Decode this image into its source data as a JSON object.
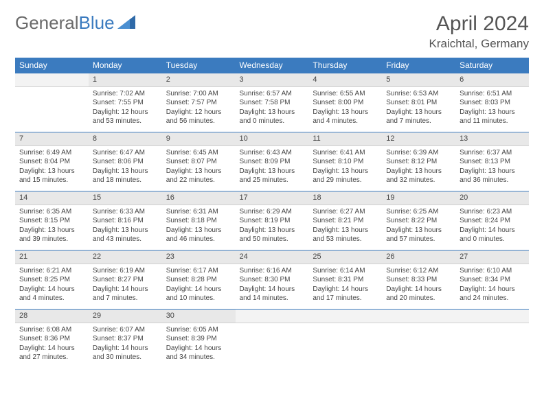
{
  "brand": {
    "part1": "General",
    "part2": "Blue"
  },
  "title": "April 2024",
  "location": "Kraichtal, Germany",
  "colors": {
    "header_bg": "#3b7bbf",
    "header_text": "#ffffff",
    "daybar_bg": "#e8e8e8",
    "daybar_border_top": "#3b7bbf",
    "text": "#444444"
  },
  "weekdays": [
    "Sunday",
    "Monday",
    "Tuesday",
    "Wednesday",
    "Thursday",
    "Friday",
    "Saturday"
  ],
  "weeks": [
    [
      {
        "n": "",
        "lines": []
      },
      {
        "n": "1",
        "lines": [
          "Sunrise: 7:02 AM",
          "Sunset: 7:55 PM",
          "Daylight: 12 hours",
          "and 53 minutes."
        ]
      },
      {
        "n": "2",
        "lines": [
          "Sunrise: 7:00 AM",
          "Sunset: 7:57 PM",
          "Daylight: 12 hours",
          "and 56 minutes."
        ]
      },
      {
        "n": "3",
        "lines": [
          "Sunrise: 6:57 AM",
          "Sunset: 7:58 PM",
          "Daylight: 13 hours",
          "and 0 minutes."
        ]
      },
      {
        "n": "4",
        "lines": [
          "Sunrise: 6:55 AM",
          "Sunset: 8:00 PM",
          "Daylight: 13 hours",
          "and 4 minutes."
        ]
      },
      {
        "n": "5",
        "lines": [
          "Sunrise: 6:53 AM",
          "Sunset: 8:01 PM",
          "Daylight: 13 hours",
          "and 7 minutes."
        ]
      },
      {
        "n": "6",
        "lines": [
          "Sunrise: 6:51 AM",
          "Sunset: 8:03 PM",
          "Daylight: 13 hours",
          "and 11 minutes."
        ]
      }
    ],
    [
      {
        "n": "7",
        "lines": [
          "Sunrise: 6:49 AM",
          "Sunset: 8:04 PM",
          "Daylight: 13 hours",
          "and 15 minutes."
        ]
      },
      {
        "n": "8",
        "lines": [
          "Sunrise: 6:47 AM",
          "Sunset: 8:06 PM",
          "Daylight: 13 hours",
          "and 18 minutes."
        ]
      },
      {
        "n": "9",
        "lines": [
          "Sunrise: 6:45 AM",
          "Sunset: 8:07 PM",
          "Daylight: 13 hours",
          "and 22 minutes."
        ]
      },
      {
        "n": "10",
        "lines": [
          "Sunrise: 6:43 AM",
          "Sunset: 8:09 PM",
          "Daylight: 13 hours",
          "and 25 minutes."
        ]
      },
      {
        "n": "11",
        "lines": [
          "Sunrise: 6:41 AM",
          "Sunset: 8:10 PM",
          "Daylight: 13 hours",
          "and 29 minutes."
        ]
      },
      {
        "n": "12",
        "lines": [
          "Sunrise: 6:39 AM",
          "Sunset: 8:12 PM",
          "Daylight: 13 hours",
          "and 32 minutes."
        ]
      },
      {
        "n": "13",
        "lines": [
          "Sunrise: 6:37 AM",
          "Sunset: 8:13 PM",
          "Daylight: 13 hours",
          "and 36 minutes."
        ]
      }
    ],
    [
      {
        "n": "14",
        "lines": [
          "Sunrise: 6:35 AM",
          "Sunset: 8:15 PM",
          "Daylight: 13 hours",
          "and 39 minutes."
        ]
      },
      {
        "n": "15",
        "lines": [
          "Sunrise: 6:33 AM",
          "Sunset: 8:16 PM",
          "Daylight: 13 hours",
          "and 43 minutes."
        ]
      },
      {
        "n": "16",
        "lines": [
          "Sunrise: 6:31 AM",
          "Sunset: 8:18 PM",
          "Daylight: 13 hours",
          "and 46 minutes."
        ]
      },
      {
        "n": "17",
        "lines": [
          "Sunrise: 6:29 AM",
          "Sunset: 8:19 PM",
          "Daylight: 13 hours",
          "and 50 minutes."
        ]
      },
      {
        "n": "18",
        "lines": [
          "Sunrise: 6:27 AM",
          "Sunset: 8:21 PM",
          "Daylight: 13 hours",
          "and 53 minutes."
        ]
      },
      {
        "n": "19",
        "lines": [
          "Sunrise: 6:25 AM",
          "Sunset: 8:22 PM",
          "Daylight: 13 hours",
          "and 57 minutes."
        ]
      },
      {
        "n": "20",
        "lines": [
          "Sunrise: 6:23 AM",
          "Sunset: 8:24 PM",
          "Daylight: 14 hours",
          "and 0 minutes."
        ]
      }
    ],
    [
      {
        "n": "21",
        "lines": [
          "Sunrise: 6:21 AM",
          "Sunset: 8:25 PM",
          "Daylight: 14 hours",
          "and 4 minutes."
        ]
      },
      {
        "n": "22",
        "lines": [
          "Sunrise: 6:19 AM",
          "Sunset: 8:27 PM",
          "Daylight: 14 hours",
          "and 7 minutes."
        ]
      },
      {
        "n": "23",
        "lines": [
          "Sunrise: 6:17 AM",
          "Sunset: 8:28 PM",
          "Daylight: 14 hours",
          "and 10 minutes."
        ]
      },
      {
        "n": "24",
        "lines": [
          "Sunrise: 6:16 AM",
          "Sunset: 8:30 PM",
          "Daylight: 14 hours",
          "and 14 minutes."
        ]
      },
      {
        "n": "25",
        "lines": [
          "Sunrise: 6:14 AM",
          "Sunset: 8:31 PM",
          "Daylight: 14 hours",
          "and 17 minutes."
        ]
      },
      {
        "n": "26",
        "lines": [
          "Sunrise: 6:12 AM",
          "Sunset: 8:33 PM",
          "Daylight: 14 hours",
          "and 20 minutes."
        ]
      },
      {
        "n": "27",
        "lines": [
          "Sunrise: 6:10 AM",
          "Sunset: 8:34 PM",
          "Daylight: 14 hours",
          "and 24 minutes."
        ]
      }
    ],
    [
      {
        "n": "28",
        "lines": [
          "Sunrise: 6:08 AM",
          "Sunset: 8:36 PM",
          "Daylight: 14 hours",
          "and 27 minutes."
        ]
      },
      {
        "n": "29",
        "lines": [
          "Sunrise: 6:07 AM",
          "Sunset: 8:37 PM",
          "Daylight: 14 hours",
          "and 30 minutes."
        ]
      },
      {
        "n": "30",
        "lines": [
          "Sunrise: 6:05 AM",
          "Sunset: 8:39 PM",
          "Daylight: 14 hours",
          "and 34 minutes."
        ]
      },
      {
        "n": "",
        "lines": []
      },
      {
        "n": "",
        "lines": []
      },
      {
        "n": "",
        "lines": []
      },
      {
        "n": "",
        "lines": []
      }
    ]
  ]
}
